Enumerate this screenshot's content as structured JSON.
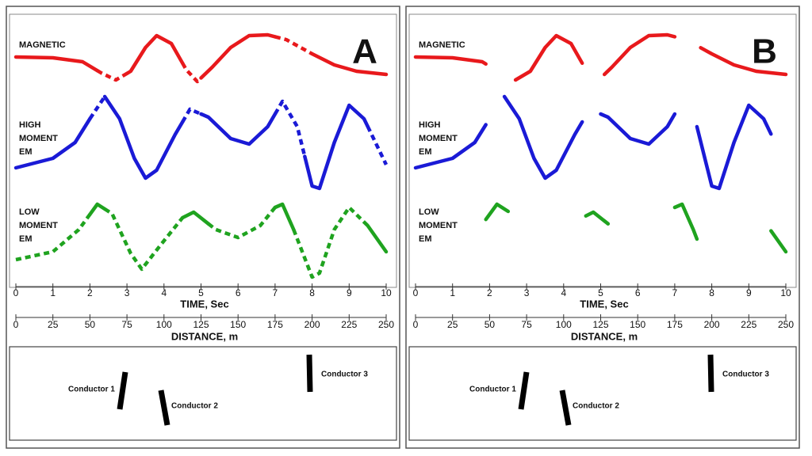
{
  "panels": [
    {
      "label": "A",
      "tracks": [
        {
          "lines": [
            "MAGNETIC"
          ]
        },
        {
          "lines": [
            "HIGH",
            "MOMENT",
            "EM"
          ]
        },
        {
          "lines": [
            "LOW",
            "MOMENT",
            "EM"
          ]
        }
      ],
      "time_axis": {
        "title": "TIME, Sec",
        "ticks": [
          0,
          1,
          2,
          3,
          4,
          5,
          6,
          7,
          8,
          9,
          10
        ]
      },
      "distance_axis": {
        "title": "DISTANCE, m",
        "ticks": [
          0,
          25,
          50,
          75,
          100,
          125,
          150,
          175,
          200,
          225,
          250
        ]
      },
      "conductors": [
        {
          "label": "Conductor 1"
        },
        {
          "label": "Conductor 2"
        },
        {
          "label": "Conductor 3"
        }
      ]
    },
    {
      "label": "B",
      "tracks": [
        {
          "lines": [
            "MAGNETIC"
          ]
        },
        {
          "lines": [
            "HIGH",
            "MOMENT",
            "EM"
          ]
        },
        {
          "lines": [
            "LOW",
            "MOMENT",
            "EM"
          ]
        }
      ],
      "time_axis": {
        "title": "TIME, Sec",
        "ticks": [
          0,
          1,
          2,
          3,
          4,
          5,
          6,
          7,
          8,
          9,
          10
        ]
      },
      "distance_axis": {
        "title": "DISTANCE, m",
        "ticks": [
          0,
          25,
          50,
          75,
          100,
          125,
          150,
          175,
          200,
          225,
          250
        ]
      },
      "conductors": [
        {
          "label": "Conductor 1"
        },
        {
          "label": "Conductor 2"
        },
        {
          "label": "Conductor 3"
        }
      ]
    }
  ]
}
